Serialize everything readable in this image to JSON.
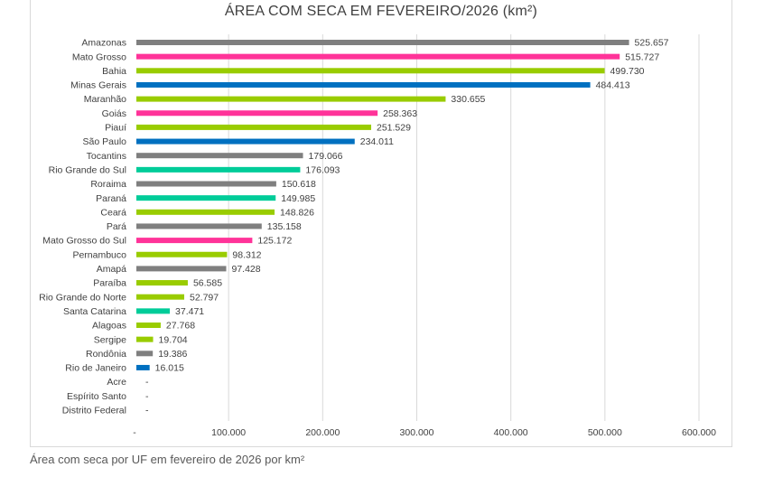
{
  "chart_data": {
    "type": "bar",
    "orientation": "horizontal",
    "title": "ÁREA COM SECA EM FEVEREIRO/2026 (km²)",
    "xlabel": "",
    "ylabel": "",
    "xlim": [
      0,
      600000
    ],
    "grid": "vertical",
    "legend": "none",
    "tick_labels": [
      "-",
      "100.000",
      "200.000",
      "300.000",
      "400.000",
      "500.000",
      "600.000"
    ],
    "tick_values": [
      0,
      100000,
      200000,
      300000,
      400000,
      500000,
      600000
    ],
    "categories": [
      "Amazonas",
      "Mato Grosso",
      "Bahia",
      "Minas Gerais",
      "Maranhão",
      "Goiás",
      "Piauí",
      "São Paulo",
      "Tocantins",
      "Rio Grande do Sul",
      "Roraima",
      "Paraná",
      "Ceará",
      "Pará",
      "Mato Grosso do Sul",
      "Pernambuco",
      "Amapá",
      "Paraíba",
      "Rio Grande do Norte",
      "Santa Catarina",
      "Alagoas",
      "Sergipe",
      "Rondônia",
      "Rio de Janeiro",
      "Acre",
      "Espírito Santo",
      "Distrito Federal"
    ],
    "values": [
      525657,
      515727,
      499730,
      484413,
      330655,
      258363,
      251529,
      234011,
      179066,
      176093,
      150618,
      149985,
      148826,
      135158,
      125172,
      98312,
      97428,
      56585,
      52797,
      37471,
      27768,
      19704,
      19386,
      16015,
      0,
      0,
      0
    ],
    "value_labels": [
      "525.657",
      "515.727",
      "499.730",
      "484.413",
      "330.655",
      "258.363",
      "251.529",
      "234.011",
      "179.066",
      "176.093",
      "150.618",
      "149.985",
      "148.826",
      "135.158",
      "125.172",
      "98.312",
      "97.428",
      "56.585",
      "52.797",
      "37.471",
      "27.768",
      "19.704",
      "19.386",
      "16.015",
      "-",
      "-",
      "-"
    ],
    "colors": [
      "#7f7f7f",
      "#ff3399",
      "#99cc00",
      "#0070c0",
      "#99cc00",
      "#ff3399",
      "#99cc00",
      "#0070c0",
      "#7f7f7f",
      "#00cc99",
      "#7f7f7f",
      "#00cc99",
      "#99cc00",
      "#7f7f7f",
      "#ff3399",
      "#99cc00",
      "#7f7f7f",
      "#99cc00",
      "#99cc00",
      "#00cc99",
      "#99cc00",
      "#99cc00",
      "#7f7f7f",
      "#0070c0",
      "#7f7f7f",
      "#0070c0",
      "#ff3399"
    ]
  },
  "caption": "Área com seca por UF em fevereiro de 2026 por km²"
}
